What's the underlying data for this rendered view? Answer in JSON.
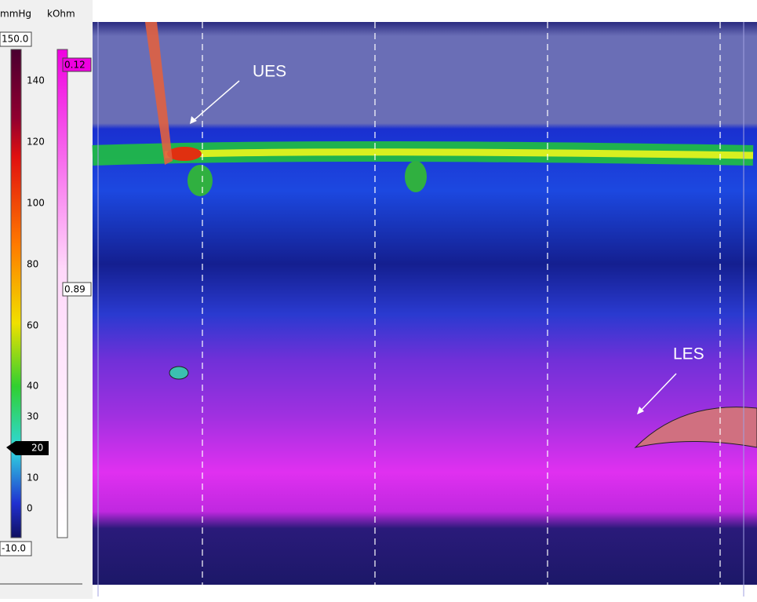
{
  "scale": {
    "pressure_unit": "mmHg",
    "impedance_unit": "kOhm",
    "pressure_max": "150.0",
    "pressure_min": "-10.0",
    "pressure_ticks": [
      "140",
      "120",
      "100",
      "80",
      "60",
      "40",
      "30",
      "10",
      "0"
    ],
    "marker": "20",
    "impedance_top": "0.12",
    "impedance_bottom": "0.89"
  },
  "annotations": {
    "ues": "UES",
    "les": "LES"
  }
}
